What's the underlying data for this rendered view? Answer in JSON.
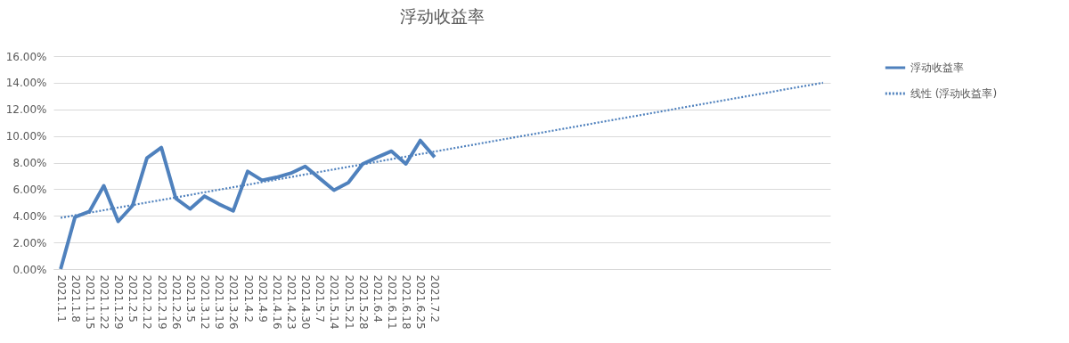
{
  "chart_data": {
    "type": "line",
    "title": "浮动收益率",
    "categories": [
      "2021.1.1",
      "2021.1.8",
      "2021.1.15",
      "2021.1.22",
      "2021.1.29",
      "2021.2.5",
      "2021.2.12",
      "2021.2.19",
      "2021.2.26",
      "2021.3.5",
      "2021.3.12",
      "2021.3.19",
      "2021.3.26",
      "2021.4.2",
      "2021.4.9",
      "2021.4.16",
      "2021.4.23",
      "2021.4.30",
      "2021.5.7",
      "2021.5.14",
      "2021.5.21",
      "2021.5.28",
      "2021.6.4",
      "2021.6.11",
      "2021.6.18",
      "2021.6.25",
      "2021.7.2",
      null,
      null,
      null,
      null,
      null,
      null,
      null,
      null,
      null,
      null,
      null,
      null,
      null,
      null,
      null,
      null,
      null,
      null,
      null,
      null,
      null,
      null,
      null,
      null,
      null,
      null,
      null
    ],
    "series": [
      {
        "name": "浮动收益率",
        "color": "#4f81bd",
        "line_style": "solid",
        "values": [
          0,
          3.91,
          4.32,
          6.26,
          3.58,
          4.77,
          8.34,
          9.13,
          5.32,
          4.52,
          5.48,
          4.88,
          4.38,
          7.34,
          6.67,
          6.89,
          7.2,
          7.72,
          6.82,
          5.93,
          6.49,
          7.9,
          8.39,
          8.86,
          7.9,
          9.66,
          8.41,
          null,
          null,
          null,
          null,
          null,
          null,
          null,
          null,
          null,
          null,
          null,
          null,
          null,
          null,
          null,
          null,
          null,
          null,
          null,
          null,
          null,
          null,
          null,
          null,
          null,
          null,
          null
        ]
      },
      {
        "name": "线性 (浮动收益率)",
        "color": "#4f81bd",
        "line_style": "dotted",
        "values": [
          3.85,
          4.04,
          4.23,
          4.42,
          4.62,
          4.81,
          5.0,
          5.19,
          5.38,
          5.57,
          5.77,
          5.96,
          6.15,
          6.34,
          6.53,
          6.72,
          6.91,
          7.11,
          7.3,
          7.49,
          7.68,
          7.87,
          8.06,
          8.26,
          8.45,
          8.64,
          8.83,
          9.02,
          9.21,
          9.4,
          9.6,
          9.79,
          9.98,
          10.17,
          10.36,
          10.55,
          10.74,
          10.94,
          11.13,
          11.32,
          11.51,
          11.7,
          11.89,
          12.09,
          12.28,
          12.47,
          12.66,
          12.85,
          13.04,
          13.23,
          13.43,
          13.62,
          13.81,
          14.0
        ]
      }
    ],
    "ylim": [
      0,
      16
    ],
    "yticks": [
      {
        "value": 0,
        "label": "0.00%"
      },
      {
        "value": 2,
        "label": "2.00%"
      },
      {
        "value": 4,
        "label": "4.00%"
      },
      {
        "value": 6,
        "label": "6.00%"
      },
      {
        "value": 8,
        "label": "8.00%"
      },
      {
        "value": 10,
        "label": "10.00%"
      },
      {
        "value": 12,
        "label": "12.00%"
      },
      {
        "value": 14,
        "label": "14.00%"
      },
      {
        "value": 16,
        "label": "16.00%"
      }
    ],
    "grid": "y",
    "legend": "right"
  }
}
